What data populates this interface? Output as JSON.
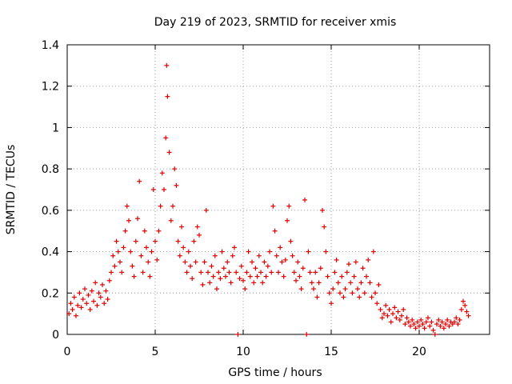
{
  "chart_data": {
    "type": "scatter",
    "title": "Day 219 of 2023, SRMTID for receiver xmis",
    "xlabel": "GPS time / hours",
    "ylabel": "SRMTID / TECUs",
    "xlim": [
      0,
      24
    ],
    "ylim": [
      0,
      1.4
    ],
    "xticks": [
      0,
      5,
      10,
      15,
      20
    ],
    "xtick_labels": [
      "0",
      "5",
      "10",
      "15",
      "20"
    ],
    "yticks": [
      0,
      0.2,
      0.4,
      0.6,
      0.8,
      1.0,
      1.2,
      1.4
    ],
    "ytick_labels": [
      "0",
      "0.2",
      "0.4",
      "0.6",
      "0.8",
      "1",
      "1.2",
      "1.4"
    ],
    "grid": true,
    "marker": "+",
    "color": "#e00000",
    "series": [
      {
        "name": "SRMTID",
        "points": [
          [
            0.1,
            0.1
          ],
          [
            0.2,
            0.15
          ],
          [
            0.3,
            0.12
          ],
          [
            0.4,
            0.18
          ],
          [
            0.5,
            0.09
          ],
          [
            0.6,
            0.14
          ],
          [
            0.7,
            0.2
          ],
          [
            0.8,
            0.13
          ],
          [
            0.9,
            0.17
          ],
          [
            1.0,
            0.22
          ],
          [
            1.1,
            0.15
          ],
          [
            1.2,
            0.19
          ],
          [
            1.3,
            0.12
          ],
          [
            1.4,
            0.21
          ],
          [
            1.5,
            0.16
          ],
          [
            1.6,
            0.25
          ],
          [
            1.7,
            0.14
          ],
          [
            1.8,
            0.2
          ],
          [
            1.9,
            0.18
          ],
          [
            2.0,
            0.24
          ],
          [
            2.1,
            0.15
          ],
          [
            2.2,
            0.21
          ],
          [
            2.3,
            0.17
          ],
          [
            2.4,
            0.26
          ],
          [
            2.5,
            0.3
          ],
          [
            2.6,
            0.38
          ],
          [
            2.7,
            0.33
          ],
          [
            2.8,
            0.45
          ],
          [
            2.9,
            0.4
          ],
          [
            3.0,
            0.35
          ],
          [
            3.1,
            0.3
          ],
          [
            3.2,
            0.42
          ],
          [
            3.3,
            0.5
          ],
          [
            3.4,
            0.62
          ],
          [
            3.5,
            0.55
          ],
          [
            3.6,
            0.4
          ],
          [
            3.7,
            0.33
          ],
          [
            3.8,
            0.28
          ],
          [
            3.9,
            0.45
          ],
          [
            4.0,
            0.56
          ],
          [
            4.1,
            0.74
          ],
          [
            4.2,
            0.38
          ],
          [
            4.3,
            0.3
          ],
          [
            4.4,
            0.5
          ],
          [
            4.5,
            0.42
          ],
          [
            4.6,
            0.35
          ],
          [
            4.7,
            0.28
          ],
          [
            4.8,
            0.4
          ],
          [
            4.9,
            0.7
          ],
          [
            5.0,
            0.45
          ],
          [
            5.1,
            0.36
          ],
          [
            5.2,
            0.5
          ],
          [
            5.3,
            0.62
          ],
          [
            5.4,
            0.78
          ],
          [
            5.5,
            0.7
          ],
          [
            5.6,
            0.95
          ],
          [
            5.65,
            1.3
          ],
          [
            5.7,
            1.15
          ],
          [
            5.8,
            0.88
          ],
          [
            5.9,
            0.55
          ],
          [
            6.0,
            0.62
          ],
          [
            6.1,
            0.8
          ],
          [
            6.2,
            0.72
          ],
          [
            6.3,
            0.45
          ],
          [
            6.4,
            0.38
          ],
          [
            6.5,
            0.52
          ],
          [
            6.6,
            0.42
          ],
          [
            6.7,
            0.35
          ],
          [
            6.8,
            0.3
          ],
          [
            6.9,
            0.4
          ],
          [
            7.0,
            0.33
          ],
          [
            7.1,
            0.27
          ],
          [
            7.2,
            0.45
          ],
          [
            7.3,
            0.35
          ],
          [
            7.4,
            0.52
          ],
          [
            7.5,
            0.48
          ],
          [
            7.6,
            0.3
          ],
          [
            7.7,
            0.24
          ],
          [
            7.8,
            0.35
          ],
          [
            7.9,
            0.6
          ],
          [
            8.0,
            0.3
          ],
          [
            8.1,
            0.25
          ],
          [
            8.2,
            0.33
          ],
          [
            8.3,
            0.28
          ],
          [
            8.4,
            0.38
          ],
          [
            8.5,
            0.22
          ],
          [
            8.6,
            0.3
          ],
          [
            8.7,
            0.27
          ],
          [
            8.8,
            0.4
          ],
          [
            8.9,
            0.32
          ],
          [
            9.0,
            0.28
          ],
          [
            9.1,
            0.35
          ],
          [
            9.2,
            0.3
          ],
          [
            9.3,
            0.25
          ],
          [
            9.4,
            0.38
          ],
          [
            9.5,
            0.42
          ],
          [
            9.6,
            0.3
          ],
          [
            9.7,
            0.0
          ],
          [
            9.8,
            0.27
          ],
          [
            9.9,
            0.33
          ],
          [
            10.0,
            0.26
          ],
          [
            10.1,
            0.22
          ],
          [
            10.2,
            0.3
          ],
          [
            10.3,
            0.4
          ],
          [
            10.4,
            0.28
          ],
          [
            10.5,
            0.35
          ],
          [
            10.6,
            0.25
          ],
          [
            10.7,
            0.32
          ],
          [
            10.8,
            0.28
          ],
          [
            10.9,
            0.38
          ],
          [
            11.0,
            0.3
          ],
          [
            11.1,
            0.25
          ],
          [
            11.2,
            0.35
          ],
          [
            11.3,
            0.28
          ],
          [
            11.4,
            0.33
          ],
          [
            11.5,
            0.4
          ],
          [
            11.6,
            0.3
          ],
          [
            11.7,
            0.62
          ],
          [
            11.8,
            0.5
          ],
          [
            11.9,
            0.38
          ],
          [
            12.0,
            0.3
          ],
          [
            12.1,
            0.42
          ],
          [
            12.2,
            0.35
          ],
          [
            12.3,
            0.28
          ],
          [
            12.4,
            0.36
          ],
          [
            12.5,
            0.55
          ],
          [
            12.6,
            0.62
          ],
          [
            12.7,
            0.45
          ],
          [
            12.8,
            0.38
          ],
          [
            12.9,
            0.3
          ],
          [
            13.0,
            0.26
          ],
          [
            13.1,
            0.35
          ],
          [
            13.2,
            0.28
          ],
          [
            13.3,
            0.22
          ],
          [
            13.4,
            0.32
          ],
          [
            13.5,
            0.65
          ],
          [
            13.6,
            0.0
          ],
          [
            13.7,
            0.4
          ],
          [
            13.8,
            0.3
          ],
          [
            13.9,
            0.25
          ],
          [
            14.0,
            0.22
          ],
          [
            14.1,
            0.3
          ],
          [
            14.2,
            0.18
          ],
          [
            14.3,
            0.25
          ],
          [
            14.4,
            0.32
          ],
          [
            14.5,
            0.6
          ],
          [
            14.6,
            0.52
          ],
          [
            14.7,
            0.4
          ],
          [
            14.8,
            0.28
          ],
          [
            14.9,
            0.2
          ],
          [
            15.0,
            0.15
          ],
          [
            15.1,
            0.22
          ],
          [
            15.2,
            0.3
          ],
          [
            15.3,
            0.36
          ],
          [
            15.4,
            0.25
          ],
          [
            15.5,
            0.2
          ],
          [
            15.6,
            0.28
          ],
          [
            15.7,
            0.18
          ],
          [
            15.8,
            0.22
          ],
          [
            15.9,
            0.3
          ],
          [
            16.0,
            0.34
          ],
          [
            16.1,
            0.25
          ],
          [
            16.2,
            0.2
          ],
          [
            16.3,
            0.28
          ],
          [
            16.4,
            0.35
          ],
          [
            16.5,
            0.22
          ],
          [
            16.6,
            0.18
          ],
          [
            16.7,
            0.25
          ],
          [
            16.8,
            0.32
          ],
          [
            16.9,
            0.2
          ],
          [
            17.0,
            0.28
          ],
          [
            17.1,
            0.36
          ],
          [
            17.2,
            0.25
          ],
          [
            17.3,
            0.18
          ],
          [
            17.4,
            0.4
          ],
          [
            17.5,
            0.2
          ],
          [
            17.6,
            0.15
          ],
          [
            17.7,
            0.24
          ],
          [
            17.8,
            0.12
          ],
          [
            17.9,
            0.08
          ],
          [
            18.0,
            0.1
          ],
          [
            18.1,
            0.14
          ],
          [
            18.2,
            0.09
          ],
          [
            18.3,
            0.12
          ],
          [
            18.4,
            0.06
          ],
          [
            18.5,
            0.1
          ],
          [
            18.6,
            0.13
          ],
          [
            18.7,
            0.08
          ],
          [
            18.8,
            0.11
          ],
          [
            18.9,
            0.07
          ],
          [
            19.0,
            0.09
          ],
          [
            19.1,
            0.12
          ],
          [
            19.2,
            0.05
          ],
          [
            19.3,
            0.08
          ],
          [
            19.4,
            0.06
          ],
          [
            19.5,
            0.04
          ],
          [
            19.6,
            0.07
          ],
          [
            19.7,
            0.05
          ],
          [
            19.8,
            0.03
          ],
          [
            19.9,
            0.06
          ],
          [
            20.0,
            0.04
          ],
          [
            20.1,
            0.07
          ],
          [
            20.2,
            0.05
          ],
          [
            20.3,
            0.03
          ],
          [
            20.4,
            0.06
          ],
          [
            20.5,
            0.08
          ],
          [
            20.6,
            0.04
          ],
          [
            20.7,
            0.06
          ],
          [
            20.8,
            0.02
          ],
          [
            20.9,
            0.0
          ],
          [
            21.0,
            0.05
          ],
          [
            21.1,
            0.07
          ],
          [
            21.2,
            0.04
          ],
          [
            21.3,
            0.06
          ],
          [
            21.4,
            0.03
          ],
          [
            21.5,
            0.05
          ],
          [
            21.6,
            0.07
          ],
          [
            21.7,
            0.04
          ],
          [
            21.8,
            0.06
          ],
          [
            21.9,
            0.05
          ],
          [
            22.0,
            0.06
          ],
          [
            22.1,
            0.08
          ],
          [
            22.2,
            0.05
          ],
          [
            22.3,
            0.07
          ],
          [
            22.4,
            0.12
          ],
          [
            22.5,
            0.16
          ],
          [
            22.6,
            0.14
          ],
          [
            22.7,
            0.11
          ],
          [
            22.8,
            0.09
          ]
        ]
      }
    ]
  }
}
